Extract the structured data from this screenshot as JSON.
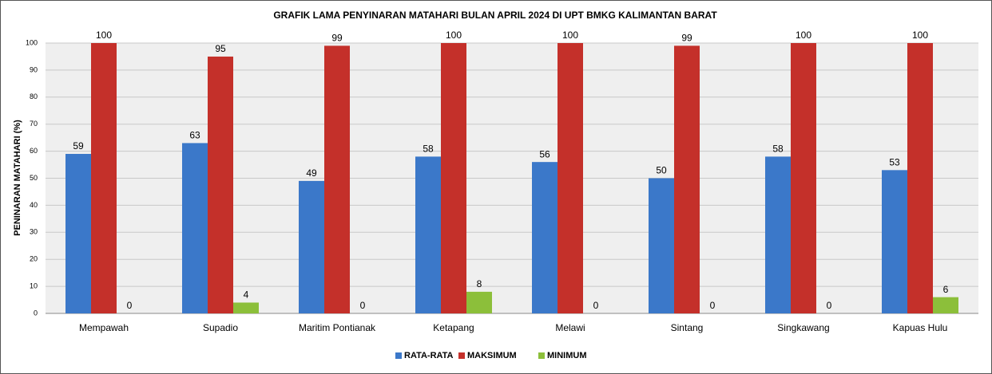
{
  "chart_data": {
    "type": "bar",
    "title": "GRAFIK LAMA PENYINARAN MATAHARI BULAN APRIL 2024 DI UPT BMKG KALIMANTAN BARAT",
    "y_label": "PENINARAN MATAHARI (%)",
    "categories": [
      "Mempawah",
      "Supadio",
      "Maritim Pontianak",
      "Ketapang",
      "Melawi",
      "Sintang",
      "Singkawang",
      "Kapuas Hulu"
    ],
    "series": [
      {
        "name": "RATA-RATA",
        "color": "#3b78c9",
        "values": [
          59,
          63,
          49,
          58,
          56,
          50,
          58,
          53
        ]
      },
      {
        "name": "MAKSIMUM",
        "color": "#c4302a",
        "values": [
          100,
          95,
          99,
          100,
          100,
          99,
          100,
          100
        ]
      },
      {
        "name": "MINIMUM",
        "color": "#8cbf3a",
        "values": [
          0,
          4,
          0,
          8,
          0,
          0,
          0,
          6
        ]
      }
    ],
    "ylim": [
      0,
      100
    ],
    "yticks": [
      0,
      10,
      20,
      30,
      40,
      50,
      60,
      70,
      80,
      90,
      100
    ],
    "grid": true,
    "legend": "bottom"
  }
}
